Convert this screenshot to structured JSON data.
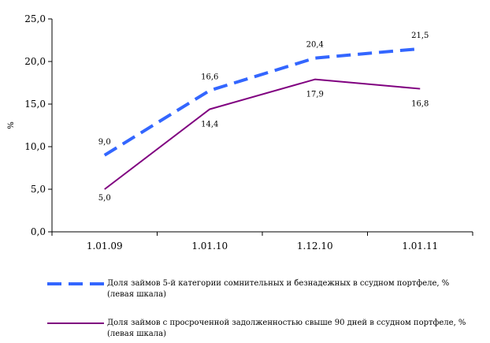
{
  "chart_data": {
    "type": "line",
    "categories": [
      "1.01.09",
      "1.01.10",
      "1.12.10",
      "1.01.11"
    ],
    "ylabel": "%",
    "ylim": [
      0,
      25
    ],
    "yticks": [
      "0,0",
      "5,0",
      "10,0",
      "15,0",
      "20,0",
      "25,0"
    ],
    "grid": false,
    "legend_position": "bottom",
    "series": [
      {
        "name": "Доля займов 5-й категории сомнительных и безнадежных в ссудном портфеле, % (левая шкала)",
        "values": [
          9.0,
          16.6,
          20.4,
          21.5
        ],
        "labels": [
          "9,0",
          "16,6",
          "20,4",
          "21,5"
        ],
        "color": "#3366ff",
        "style": "dashed"
      },
      {
        "name": "Доля займов с просроченной задолженностью свыше 90 дней в ссудном портфеле, % (левая шкала)",
        "values": [
          5.0,
          14.4,
          17.9,
          16.8
        ],
        "labels": [
          "5,0",
          "14,4",
          "17,9",
          "16,8"
        ],
        "color": "#800080",
        "style": "solid"
      }
    ]
  }
}
